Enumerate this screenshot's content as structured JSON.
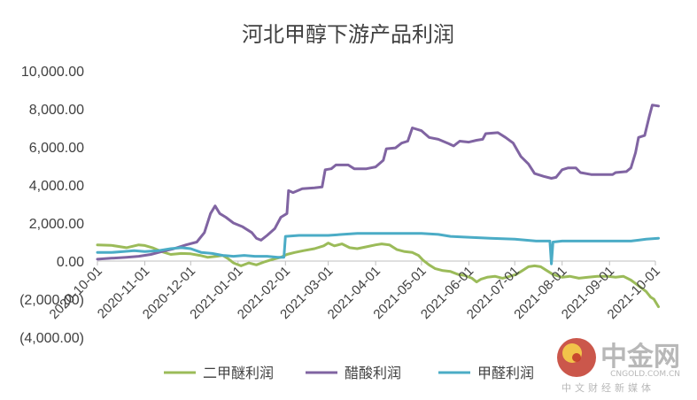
{
  "chart_data": {
    "type": "line",
    "title": "河北甲醇下游产品利润",
    "y_tick_labels": [
      "10,000.00",
      "8,000.00",
      "6,000.00",
      "4,000.00",
      "2,000.00",
      "0.00",
      "(2,000.00)",
      "(4,000.00)"
    ],
    "x_tick_labels": [
      "2020-10-01",
      "2020-11-01",
      "2020-12-01",
      "2021-01-01",
      "2021-02-01",
      "2021-03-01",
      "2021-04-01",
      "2021-05-01",
      "2021-06-01",
      "2021-07-01",
      "2021-08-01",
      "2021-09-01",
      "2021-10-01"
    ],
    "ylim": [
      -4000,
      10000
    ],
    "grid": false,
    "legend_position": "bottom",
    "series": [
      {
        "name": "二甲醚利润",
        "color": "#9bbb59",
        "points": [
          [
            "2020-10-01",
            850
          ],
          [
            "2020-10-10",
            830
          ],
          [
            "2020-10-20",
            700
          ],
          [
            "2020-10-28",
            850
          ],
          [
            "2020-11-01",
            820
          ],
          [
            "2020-11-06",
            700
          ],
          [
            "2020-11-12",
            500
          ],
          [
            "2020-11-18",
            350
          ],
          [
            "2020-11-25",
            400
          ],
          [
            "2020-12-01",
            380
          ],
          [
            "2020-12-07",
            300
          ],
          [
            "2020-12-12",
            200
          ],
          [
            "2020-12-18",
            250
          ],
          [
            "2020-12-22",
            300
          ],
          [
            "2020-12-26",
            100
          ],
          [
            "2020-12-29",
            -100
          ],
          [
            "2021-01-03",
            -250
          ],
          [
            "2021-01-08",
            -100
          ],
          [
            "2021-01-13",
            -200
          ],
          [
            "2021-01-18",
            -50
          ],
          [
            "2021-01-24",
            100
          ],
          [
            "2021-01-29",
            200
          ],
          [
            "2021-02-02",
            350
          ],
          [
            "2021-02-07",
            450
          ],
          [
            "2021-02-13",
            550
          ],
          [
            "2021-02-20",
            650
          ],
          [
            "2021-02-26",
            800
          ],
          [
            "2021-03-01",
            950
          ],
          [
            "2021-03-05",
            800
          ],
          [
            "2021-03-10",
            900
          ],
          [
            "2021-03-15",
            700
          ],
          [
            "2021-03-20",
            650
          ],
          [
            "2021-03-26",
            750
          ],
          [
            "2021-04-01",
            850
          ],
          [
            "2021-04-05",
            900
          ],
          [
            "2021-04-10",
            850
          ],
          [
            "2021-04-15",
            600
          ],
          [
            "2021-04-20",
            500
          ],
          [
            "2021-04-25",
            450
          ],
          [
            "2021-04-29",
            300
          ],
          [
            "2021-05-02",
            50
          ],
          [
            "2021-05-06",
            -200
          ],
          [
            "2021-05-10",
            -400
          ],
          [
            "2021-05-15",
            -500
          ],
          [
            "2021-05-20",
            -550
          ],
          [
            "2021-05-25",
            -700
          ],
          [
            "2021-05-29",
            -750
          ],
          [
            "2021-06-03",
            -900
          ],
          [
            "2021-06-06",
            -1100
          ],
          [
            "2021-06-09",
            -950
          ],
          [
            "2021-06-13",
            -850
          ],
          [
            "2021-06-18",
            -800
          ],
          [
            "2021-06-23",
            -900
          ],
          [
            "2021-06-28",
            -800
          ],
          [
            "2021-07-02",
            -700
          ],
          [
            "2021-07-06",
            -500
          ],
          [
            "2021-07-10",
            -300
          ],
          [
            "2021-07-14",
            -250
          ],
          [
            "2021-07-18",
            -300
          ],
          [
            "2021-07-22",
            -500
          ],
          [
            "2021-07-26",
            -700
          ],
          [
            "2021-08-01",
            -850
          ],
          [
            "2021-08-06",
            -800
          ],
          [
            "2021-08-12",
            -900
          ],
          [
            "2021-08-18",
            -850
          ],
          [
            "2021-08-24",
            -800
          ],
          [
            "2021-08-31",
            -800
          ],
          [
            "2021-09-05",
            -850
          ],
          [
            "2021-09-10",
            -800
          ],
          [
            "2021-09-15",
            -1000
          ],
          [
            "2021-09-20",
            -1300
          ],
          [
            "2021-09-25",
            -1600
          ],
          [
            "2021-09-28",
            -1900
          ],
          [
            "2021-09-30",
            -2000
          ],
          [
            "2021-10-03",
            -2400
          ]
        ]
      },
      {
        "name": "醋酸利润",
        "color": "#8064a2",
        "points": [
          [
            "2020-10-01",
            100
          ],
          [
            "2020-10-10",
            150
          ],
          [
            "2020-10-20",
            200
          ],
          [
            "2020-10-28",
            250
          ],
          [
            "2020-11-05",
            350
          ],
          [
            "2020-11-12",
            500
          ],
          [
            "2020-11-20",
            650
          ],
          [
            "2020-11-28",
            850
          ],
          [
            "2020-12-05",
            1000
          ],
          [
            "2020-12-10",
            1500
          ],
          [
            "2020-12-14",
            2500
          ],
          [
            "2020-12-17",
            2900
          ],
          [
            "2020-12-20",
            2500
          ],
          [
            "2020-12-24",
            2300
          ],
          [
            "2020-12-29",
            2000
          ],
          [
            "2021-01-04",
            1800
          ],
          [
            "2021-01-10",
            1500
          ],
          [
            "2021-01-13",
            1200
          ],
          [
            "2021-01-16",
            1100
          ],
          [
            "2021-01-20",
            1350
          ],
          [
            "2021-01-25",
            1700
          ],
          [
            "2021-01-29",
            2300
          ],
          [
            "2021-02-02",
            2500
          ],
          [
            "2021-02-03",
            3700
          ],
          [
            "2021-02-06",
            3600
          ],
          [
            "2021-02-12",
            3800
          ],
          [
            "2021-02-20",
            3850
          ],
          [
            "2021-02-25",
            3900
          ],
          [
            "2021-02-27",
            4800
          ],
          [
            "2021-03-03",
            4850
          ],
          [
            "2021-03-06",
            5050
          ],
          [
            "2021-03-14",
            5050
          ],
          [
            "2021-03-18",
            4850
          ],
          [
            "2021-03-26",
            4850
          ],
          [
            "2021-04-01",
            4950
          ],
          [
            "2021-04-06",
            5300
          ],
          [
            "2021-04-08",
            5900
          ],
          [
            "2021-04-14",
            5950
          ],
          [
            "2021-04-18",
            6200
          ],
          [
            "2021-04-22",
            6300
          ],
          [
            "2021-04-25",
            7000
          ],
          [
            "2021-05-01",
            6850
          ],
          [
            "2021-05-06",
            6500
          ],
          [
            "2021-05-12",
            6400
          ],
          [
            "2021-05-18",
            6200
          ],
          [
            "2021-05-22",
            6050
          ],
          [
            "2021-05-26",
            6300
          ],
          [
            "2021-06-01",
            6250
          ],
          [
            "2021-06-06",
            6350
          ],
          [
            "2021-06-10",
            6400
          ],
          [
            "2021-06-12",
            6700
          ],
          [
            "2021-06-20",
            6750
          ],
          [
            "2021-06-25",
            6500
          ],
          [
            "2021-06-30",
            6200
          ],
          [
            "2021-07-05",
            5500
          ],
          [
            "2021-07-10",
            5100
          ],
          [
            "2021-07-14",
            4600
          ],
          [
            "2021-07-20",
            4450
          ],
          [
            "2021-07-25",
            4350
          ],
          [
            "2021-07-28",
            4400
          ],
          [
            "2021-08-01",
            4800
          ],
          [
            "2021-08-05",
            4900
          ],
          [
            "2021-08-10",
            4900
          ],
          [
            "2021-08-13",
            4650
          ],
          [
            "2021-08-20",
            4550
          ],
          [
            "2021-08-28",
            4550
          ],
          [
            "2021-09-03",
            4550
          ],
          [
            "2021-09-05",
            4650
          ],
          [
            "2021-09-12",
            4700
          ],
          [
            "2021-09-15",
            4900
          ],
          [
            "2021-09-18",
            5700
          ],
          [
            "2021-09-20",
            6500
          ],
          [
            "2021-09-24",
            6600
          ],
          [
            "2021-09-27",
            7600
          ],
          [
            "2021-09-29",
            8200
          ],
          [
            "2021-10-03",
            8150
          ]
        ]
      },
      {
        "name": "甲醛利润",
        "color": "#4bacc6",
        "points": [
          [
            "2020-10-01",
            450
          ],
          [
            "2020-10-10",
            450
          ],
          [
            "2020-10-18",
            500
          ],
          [
            "2020-10-25",
            550
          ],
          [
            "2020-11-01",
            500
          ],
          [
            "2020-11-10",
            550
          ],
          [
            "2020-11-18",
            650
          ],
          [
            "2020-11-25",
            700
          ],
          [
            "2020-12-01",
            650
          ],
          [
            "2020-12-08",
            450
          ],
          [
            "2020-12-15",
            400
          ],
          [
            "2020-12-22",
            300
          ],
          [
            "2020-12-29",
            250
          ],
          [
            "2021-01-05",
            300
          ],
          [
            "2021-01-12",
            250
          ],
          [
            "2021-01-20",
            250
          ],
          [
            "2021-01-27",
            200
          ],
          [
            "2021-01-31",
            200
          ],
          [
            "2021-02-01",
            1300
          ],
          [
            "2021-02-10",
            1350
          ],
          [
            "2021-02-20",
            1350
          ],
          [
            "2021-03-01",
            1350
          ],
          [
            "2021-03-10",
            1400
          ],
          [
            "2021-03-20",
            1450
          ],
          [
            "2021-04-01",
            1450
          ],
          [
            "2021-04-15",
            1450
          ],
          [
            "2021-05-01",
            1450
          ],
          [
            "2021-05-12",
            1400
          ],
          [
            "2021-05-20",
            1300
          ],
          [
            "2021-06-01",
            1250
          ],
          [
            "2021-06-15",
            1200
          ],
          [
            "2021-07-01",
            1150
          ],
          [
            "2021-07-15",
            1050
          ],
          [
            "2021-07-20",
            1050
          ],
          [
            "2021-07-24",
            1050
          ],
          [
            "2021-07-25",
            -150
          ],
          [
            "2021-07-26",
            1000
          ],
          [
            "2021-08-01",
            1050
          ],
          [
            "2021-08-15",
            1050
          ],
          [
            "2021-09-01",
            1050
          ],
          [
            "2021-09-15",
            1050
          ],
          [
            "2021-09-20",
            1100
          ],
          [
            "2021-09-25",
            1150
          ],
          [
            "2021-10-03",
            1200
          ]
        ]
      }
    ]
  },
  "watermark": {
    "brand": "中金网",
    "domain": "CNGOLD.COM.CN",
    "tagline": "中文财经新媒体",
    "color": "#c23a2b"
  }
}
